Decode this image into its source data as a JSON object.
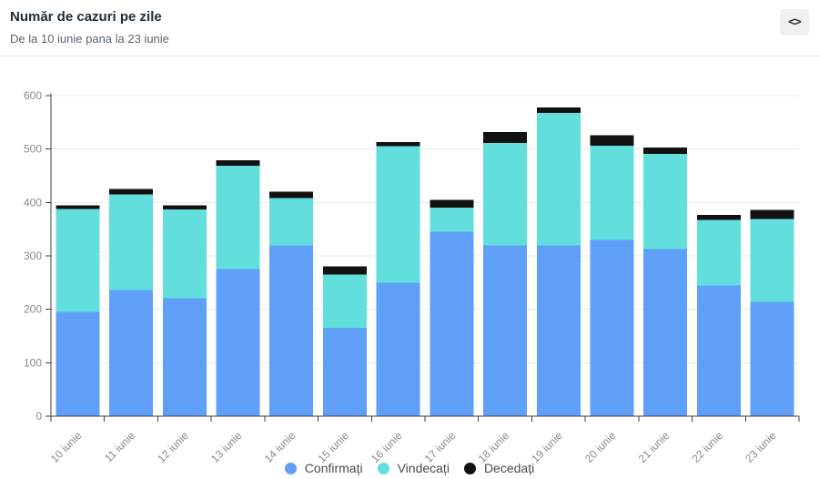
{
  "header": {
    "title": "Număr de cazuri pe zile",
    "subtitle": "De la 10 iunie pana la 23 iunie",
    "code_icon": "<>"
  },
  "chart_data": {
    "type": "bar",
    "stacked": true,
    "title": "Număr de cazuri pe zile",
    "subtitle": "De la 10 iunie pana la 23 iunie",
    "categories": [
      "10 iunie",
      "11 iunie",
      "12 iunie",
      "13 iunie",
      "14 iunie",
      "15 iunie",
      "16 iunie",
      "17 iunie",
      "18 iunie",
      "19 iunie",
      "20 iunie",
      "21 iunie",
      "22 iunie",
      "23 iunie"
    ],
    "series": [
      {
        "key": "confirmati",
        "name": "Confirmați",
        "color": "#5f9ff8",
        "values": [
          195,
          236,
          221,
          275,
          320,
          165,
          250,
          345,
          320,
          320,
          330,
          313,
          245,
          214
        ]
      },
      {
        "key": "vindecati",
        "name": "Vindecați",
        "color": "#62dfdc",
        "values": [
          193,
          179,
          166,
          194,
          88,
          100,
          255,
          45,
          191,
          248,
          176,
          178,
          122,
          155
        ]
      },
      {
        "key": "decedati",
        "name": "Decedați",
        "color": "#121212",
        "values": [
          7,
          10,
          8,
          10,
          12,
          15,
          8,
          15,
          21,
          10,
          20,
          12,
          10,
          17
        ]
      }
    ],
    "totals": [
      395,
      425,
      395,
      479,
      420,
      280,
      513,
      405,
      532,
      578,
      526,
      503,
      377,
      386
    ],
    "xlabel": "",
    "ylabel": "",
    "ylim": [
      0,
      600
    ],
    "ytick_step": 100,
    "ytick_labels": [
      "0",
      "100",
      "200",
      "300",
      "400",
      "500",
      "600"
    ],
    "grid": true,
    "grid_color": "#e8e8e8",
    "axis_color": "#3d3d3d",
    "tick_label_color": "#8b8b8b",
    "legend_position": "bottom"
  }
}
